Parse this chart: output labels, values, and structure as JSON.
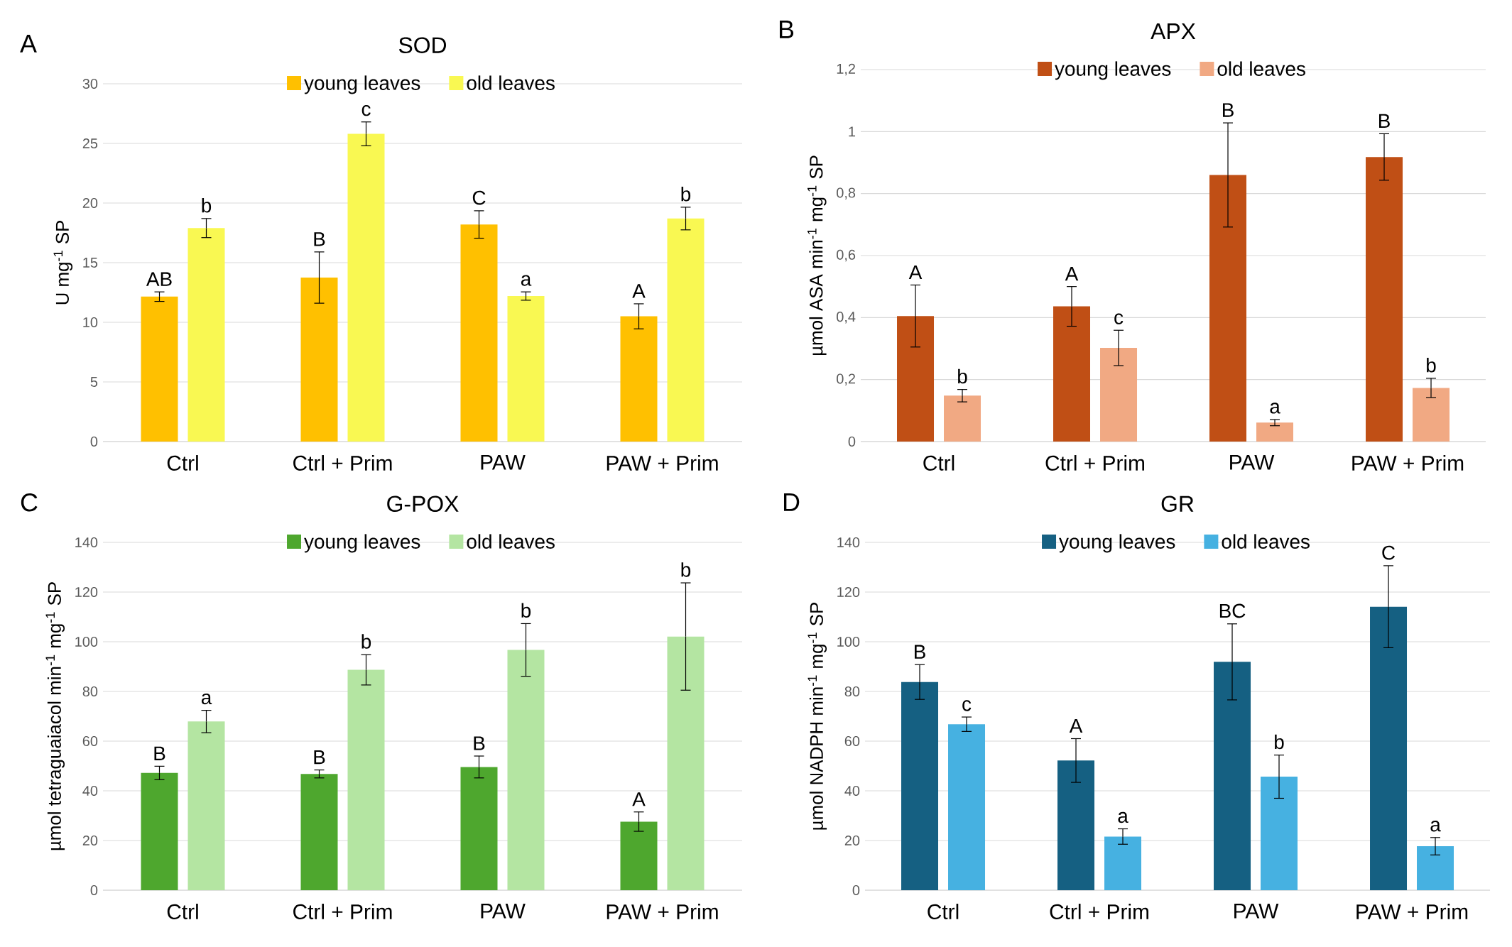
{
  "chart_data": [
    {
      "type": "bar",
      "title": "SOD",
      "ylabel": "U mg$^{-1}$ SP",
      "annotations": [
        "A"
      ],
      "categories": [
        "Ctrl",
        "Ctrl + Prim",
        "PAW",
        "PAW + Prim"
      ],
      "ylim": [
        0,
        30
      ],
      "yticks": [
        0,
        5,
        10,
        15,
        20,
        25,
        30
      ],
      "grid": "y",
      "legend": "top",
      "series": [
        {
          "name": "young leaves",
          "color": "#ffc000",
          "values": [
            12.15,
            13.75,
            18.2,
            10.5
          ],
          "errors": [
            0.4,
            2.15,
            1.15,
            1.05
          ],
          "value_labels": [
            "AB",
            "B",
            "C",
            "A"
          ]
        },
        {
          "name": "old leaves",
          "color": "#f9f852",
          "values": [
            17.9,
            25.8,
            12.2,
            18.7
          ],
          "errors": [
            0.8,
            1.0,
            0.35,
            0.95
          ],
          "value_labels": [
            "b",
            "c",
            "a",
            "b"
          ]
        }
      ]
    },
    {
      "type": "bar",
      "title": "APX",
      "ylabel": "µmol ASA min$^{-1}$ mg$^{-1}$ SP",
      "annotations": [
        "B"
      ],
      "categories": [
        "Ctrl",
        "Ctrl + Prim",
        "PAW",
        "PAW + Prim"
      ],
      "ylim": [
        0,
        1.2
      ],
      "yticks": [
        0,
        {
          "value": 0.2,
          "label": "0,2"
        },
        {
          "value": 0.4,
          "label": "0,4"
        },
        {
          "value": 0.6,
          "label": "0,6"
        },
        {
          "value": 0.8,
          "label": "0,8"
        },
        1,
        {
          "value": 1.2,
          "label": "1,2"
        }
      ],
      "grid": "y",
      "legend": "top",
      "series": [
        {
          "name": "young leaves",
          "color": "#c04f15",
          "values": [
            0.405,
            0.436,
            0.86,
            0.918
          ],
          "errors": [
            0.1,
            0.064,
            0.168,
            0.075
          ],
          "value_labels": [
            "A",
            "A",
            "B",
            "B"
          ]
        },
        {
          "name": "old leaves",
          "color": "#f1a983",
          "values": [
            0.148,
            0.302,
            0.061,
            0.173
          ],
          "errors": [
            0.02,
            0.057,
            0.01,
            0.031
          ],
          "value_labels": [
            "b",
            "c",
            "a",
            "b"
          ]
        }
      ]
    },
    {
      "type": "bar",
      "title": "G-POX",
      "ylabel": "µmol tetraguaiacol min$^{-1}$ mg$^{-1}$ SP",
      "annotations": [
        "C"
      ],
      "categories": [
        "Ctrl",
        "Ctrl + Prim",
        "PAW",
        "PAW + Prim"
      ],
      "ylim": [
        0,
        140
      ],
      "yticks": [
        0,
        20,
        40,
        60,
        80,
        100,
        120,
        140
      ],
      "grid": "y",
      "legend": "top",
      "series": [
        {
          "name": "young leaves",
          "color": "#4ea72e",
          "values": [
            47.2,
            46.8,
            49.6,
            27.6
          ],
          "errors": [
            2.7,
            1.6,
            4.4,
            3.9
          ],
          "value_labels": [
            "B",
            "B",
            "B",
            "A"
          ]
        },
        {
          "name": "old leaves",
          "color": "#b4e5a2",
          "values": [
            67.9,
            88.7,
            96.7,
            102.1
          ],
          "errors": [
            4.5,
            6.1,
            10.6,
            21.6
          ],
          "value_labels": [
            "a",
            "b",
            "b",
            "b"
          ]
        }
      ]
    },
    {
      "type": "bar",
      "title": "GR",
      "ylabel": "µmol NADPH min$^{-1}$ mg$^{-1}$ SP",
      "annotations": [
        "D"
      ],
      "categories": [
        "Ctrl",
        "Ctrl + Prim",
        "PAW",
        "PAW + Prim"
      ],
      "ylim": [
        0,
        140
      ],
      "yticks": [
        0,
        20,
        40,
        60,
        80,
        100,
        120,
        140
      ],
      "grid": "y",
      "legend": "top",
      "series": [
        {
          "name": "young leaves",
          "color": "#156082",
          "values": [
            83.8,
            52.2,
            91.9,
            114.1
          ],
          "errors": [
            7.0,
            8.8,
            15.3,
            16.5
          ],
          "value_labels": [
            "B",
            "A",
            "BC",
            "C"
          ]
        },
        {
          "name": "old leaves",
          "color": "#46b1e1",
          "values": [
            66.8,
            21.6,
            45.7,
            17.7
          ],
          "errors": [
            2.9,
            3.1,
            8.7,
            3.5
          ],
          "value_labels": [
            "c",
            "a",
            "b",
            "a"
          ]
        }
      ]
    }
  ]
}
